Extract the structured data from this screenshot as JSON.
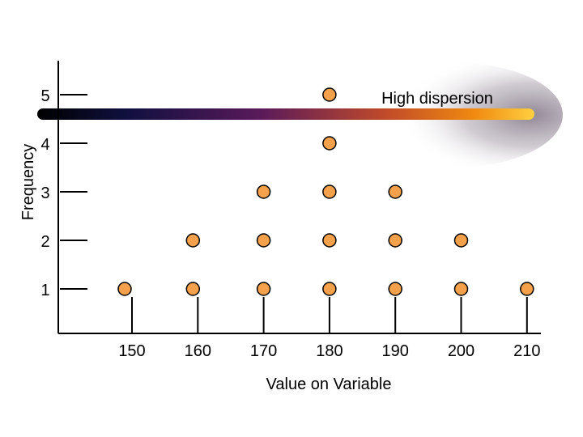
{
  "chart_data": {
    "type": "scatter",
    "title": "",
    "xlabel": "Value on Variable",
    "ylabel": "Frequency",
    "x_ticks": [
      "150",
      "160",
      "170",
      "180",
      "190",
      "200",
      "210"
    ],
    "y_ticks": [
      "1",
      "2",
      "3",
      "4",
      "5"
    ],
    "xlim": [
      145,
      213
    ],
    "ylim": [
      0,
      5.5
    ],
    "grid": false,
    "series": [
      {
        "points": [
          {
            "x": 150,
            "count": 1
          },
          {
            "x": 160,
            "count": 2
          },
          {
            "x": 170,
            "count": 3
          },
          {
            "x": 180,
            "count": 5
          },
          {
            "x": 190,
            "count": 3
          },
          {
            "x": 200,
            "count": 2
          },
          {
            "x": 210,
            "count": 1
          }
        ]
      }
    ],
    "annotation": {
      "text": "High dispersion"
    },
    "colors": {
      "marker_fill": "#f5a04a",
      "marker_stroke": "#000000",
      "axis": "#000000"
    }
  }
}
